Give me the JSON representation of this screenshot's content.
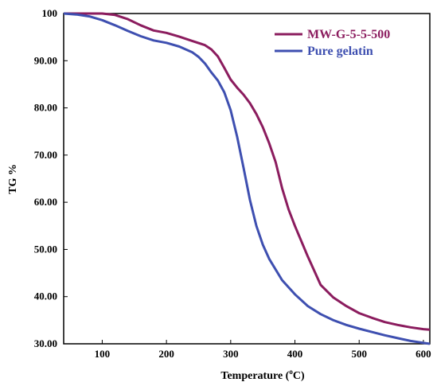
{
  "chart_data": {
    "type": "line",
    "title": "",
    "xlabel": "Temperature (",
    "xlabel_unit_sup": "o",
    "xlabel_unit_tail": "C)",
    "ylabel": "TG %",
    "xlim": [
      40,
      610
    ],
    "ylim": [
      30,
      100
    ],
    "x_ticks": [
      "100",
      "200",
      "300",
      "400",
      "500",
      "600"
    ],
    "y_ticks": [
      "100",
      "90.00",
      "80.00",
      "70.00",
      "60.00",
      "50.00",
      "40.00",
      "30.00"
    ],
    "legend_position": "top-right",
    "grid": false,
    "series": [
      {
        "name": "MW-G-5-5-500",
        "color": "#8b1c5e",
        "x": [
          40,
          80,
          100,
          120,
          140,
          160,
          180,
          200,
          220,
          240,
          260,
          270,
          280,
          290,
          300,
          310,
          320,
          330,
          340,
          350,
          360,
          370,
          380,
          390,
          400,
          420,
          440,
          460,
          480,
          500,
          520,
          540,
          560,
          580,
          600,
          610
        ],
        "y": [
          100,
          100,
          100,
          99.7,
          98.8,
          97.5,
          96.4,
          95.9,
          95.1,
          94.2,
          93.3,
          92.4,
          90.9,
          88.5,
          86.0,
          84.3,
          82.8,
          81.0,
          78.7,
          75.9,
          72.5,
          68.5,
          63.0,
          58.5,
          55.0,
          48.5,
          42.5,
          39.8,
          38.0,
          36.5,
          35.5,
          34.6,
          34.0,
          33.5,
          33.1,
          33.0
        ]
      },
      {
        "name": "Pure gelatin",
        "color": "#3e4fb0",
        "x": [
          40,
          60,
          80,
          100,
          120,
          140,
          160,
          180,
          200,
          220,
          240,
          250,
          260,
          270,
          280,
          290,
          300,
          310,
          320,
          330,
          340,
          350,
          360,
          380,
          400,
          420,
          440,
          460,
          480,
          500,
          520,
          540,
          560,
          580,
          600,
          610
        ],
        "y": [
          100,
          99.8,
          99.4,
          98.6,
          97.5,
          96.3,
          95.2,
          94.3,
          93.8,
          93.0,
          91.8,
          90.8,
          89.4,
          87.5,
          85.8,
          83.3,
          79.5,
          73.9,
          67.3,
          60.5,
          55.0,
          51.0,
          48.0,
          43.5,
          40.5,
          38.0,
          36.3,
          35.0,
          34.0,
          33.2,
          32.5,
          31.8,
          31.2,
          30.6,
          30.2,
          30.0
        ]
      }
    ]
  }
}
